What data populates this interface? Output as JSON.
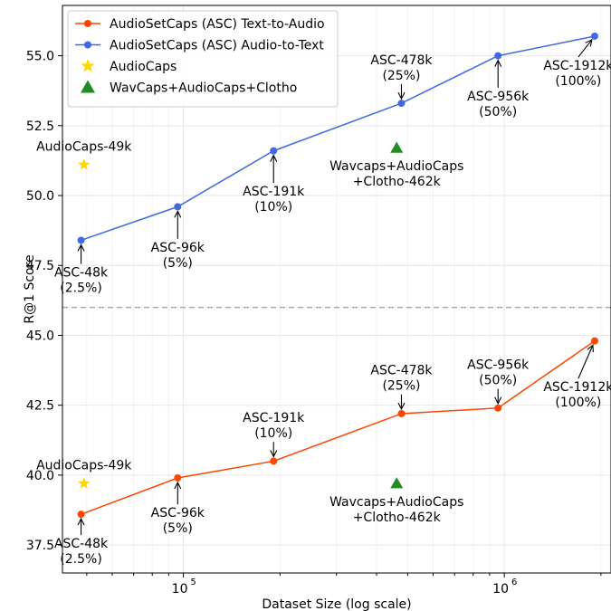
{
  "chart_data": {
    "type": "line",
    "title": "",
    "xlabel": "Dataset Size (log scale)",
    "ylabel": "R@1 Score",
    "xscale": "log",
    "xlim": [
      42000,
      2150000
    ],
    "ylim": [
      36.5,
      56.8
    ],
    "x_ticks": [
      {
        "value": 100000,
        "base": "10",
        "exp": "5"
      },
      {
        "value": 1000000,
        "base": "10",
        "exp": "6"
      }
    ],
    "y_ticks": [
      "37.5",
      "40.0",
      "42.5",
      "45.0",
      "47.5",
      "50.0",
      "52.5",
      "55.0"
    ],
    "grid": true,
    "legend_position": "top-left",
    "divider_y": 46,
    "series": [
      {
        "name": "AudioSetCaps (ASC) Text-to-Audio",
        "color": "#ff4500",
        "marker": "circle",
        "points": [
          {
            "x": 48000,
            "y": 38.6
          },
          {
            "x": 96000,
            "y": 39.9
          },
          {
            "x": 191000,
            "y": 40.5
          },
          {
            "x": 478000,
            "y": 42.2
          },
          {
            "x": 956000,
            "y": 42.4
          },
          {
            "x": 1912000,
            "y": 44.8
          }
        ]
      },
      {
        "name": "AudioSetCaps (ASC) Audio-to-Text",
        "color": "#4169e1",
        "marker": "circle",
        "points": [
          {
            "x": 48000,
            "y": 48.4
          },
          {
            "x": 96000,
            "y": 49.6
          },
          {
            "x": 191000,
            "y": 51.6
          },
          {
            "x": 478000,
            "y": 53.3
          },
          {
            "x": 956000,
            "y": 55.0
          },
          {
            "x": 1912000,
            "y": 55.7
          }
        ]
      },
      {
        "name": "AudioCaps",
        "color": "#ffd700",
        "marker": "star",
        "points": [
          {
            "x": 49000,
            "y": 51.1
          },
          {
            "x": 49000,
            "y": 39.7
          }
        ]
      },
      {
        "name": "WavCaps+AudioCaps+Clotho",
        "color": "#228b22",
        "marker": "triangle",
        "points": [
          {
            "x": 462000,
            "y": 51.7
          },
          {
            "x": 462000,
            "y": 39.7
          }
        ]
      }
    ],
    "annotations": [
      {
        "lines": [
          "ASC-48k",
          "(2.5%)"
        ],
        "x": 48000,
        "y": 48.4,
        "tx": 48000,
        "ty": 47.1,
        "arrow": true,
        "dir": "up"
      },
      {
        "lines": [
          "ASC-96k",
          "(5%)"
        ],
        "x": 96000,
        "y": 49.6,
        "tx": 96000,
        "ty": 48.0,
        "arrow": true,
        "dir": "up"
      },
      {
        "lines": [
          "ASC-191k",
          "(10%)"
        ],
        "x": 191000,
        "y": 51.6,
        "tx": 191000,
        "ty": 50.0,
        "arrow": true,
        "dir": "up"
      },
      {
        "lines": [
          "ASC-478k",
          "(25%)"
        ],
        "x": 478000,
        "y": 53.3,
        "tx": 478000,
        "ty": 54.7,
        "arrow": true,
        "dir": "down"
      },
      {
        "lines": [
          "ASC-956k",
          "(50%)"
        ],
        "x": 956000,
        "y": 55.0,
        "tx": 956000,
        "ty": 53.4,
        "arrow": true,
        "dir": "up"
      },
      {
        "lines": [
          "ASC-1912k",
          "(100%)"
        ],
        "x": 1912000,
        "y": 55.7,
        "tx": 1700000,
        "ty": 54.5,
        "arrow": true,
        "dir": "up"
      },
      {
        "lines": [
          "AudioCaps-49k"
        ],
        "x": 49000,
        "y": 51.1,
        "tx": 49000,
        "ty": 51.6,
        "arrow": false
      },
      {
        "lines": [
          "Wavcaps+AudioCaps",
          "+Clotho-462k"
        ],
        "x": 462000,
        "y": 51.7,
        "tx": 462000,
        "ty": 50.9,
        "arrow": false
      },
      {
        "lines": [
          "ASC-48k",
          "(2.5%)"
        ],
        "x": 48000,
        "y": 38.6,
        "tx": 48000,
        "ty": 37.4,
        "arrow": true,
        "dir": "up"
      },
      {
        "lines": [
          "ASC-96k",
          "(5%)"
        ],
        "x": 96000,
        "y": 39.9,
        "tx": 96000,
        "ty": 38.5,
        "arrow": true,
        "dir": "up"
      },
      {
        "lines": [
          "ASC-191k",
          "(10%)"
        ],
        "x": 191000,
        "y": 40.5,
        "tx": 191000,
        "ty": 41.9,
        "arrow": true,
        "dir": "down"
      },
      {
        "lines": [
          "ASC-478k",
          "(25%)"
        ],
        "x": 478000,
        "y": 42.2,
        "tx": 478000,
        "ty": 43.6,
        "arrow": true,
        "dir": "down"
      },
      {
        "lines": [
          "ASC-956k",
          "(50%)"
        ],
        "x": 956000,
        "y": 42.4,
        "tx": 956000,
        "ty": 43.8,
        "arrow": true,
        "dir": "down"
      },
      {
        "lines": [
          "ASC-1912k",
          "(100%)"
        ],
        "x": 1912000,
        "y": 44.8,
        "tx": 1700000,
        "ty": 43.0,
        "arrow": true,
        "dir": "up"
      },
      {
        "lines": [
          "AudioCaps-49k"
        ],
        "x": 49000,
        "y": 39.7,
        "tx": 49000,
        "ty": 40.2,
        "arrow": false
      },
      {
        "lines": [
          "Wavcaps+AudioCaps",
          "+Clotho-462k"
        ],
        "x": 462000,
        "y": 39.7,
        "tx": 462000,
        "ty": 38.9,
        "arrow": false
      }
    ]
  }
}
